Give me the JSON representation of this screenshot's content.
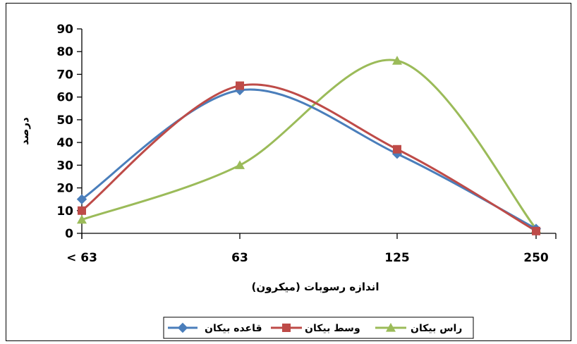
{
  "chart_data": {
    "type": "line",
    "title": "",
    "xlabel": "اندازه رسوبات (میکرون)",
    "ylabel": "درصد",
    "categories": [
      "< 63",
      "63",
      "125",
      "250"
    ],
    "ylim": [
      0,
      90
    ],
    "yticks": [
      0,
      10,
      20,
      30,
      40,
      50,
      60,
      70,
      80,
      90
    ],
    "smooth": true,
    "grid": false,
    "legend_position": "bottom",
    "series": [
      {
        "name": "قاعده بیکان",
        "color": "#4a7ebb",
        "marker": "diamond",
        "values": [
          15,
          63,
          35,
          2
        ]
      },
      {
        "name": "وسط بیکان",
        "color": "#be4b48",
        "marker": "square",
        "values": [
          10,
          65,
          37,
          1
        ]
      },
      {
        "name": "راس بیکان",
        "color": "#9bbb59",
        "marker": "triangle",
        "values": [
          6,
          30,
          76,
          2
        ]
      }
    ]
  }
}
